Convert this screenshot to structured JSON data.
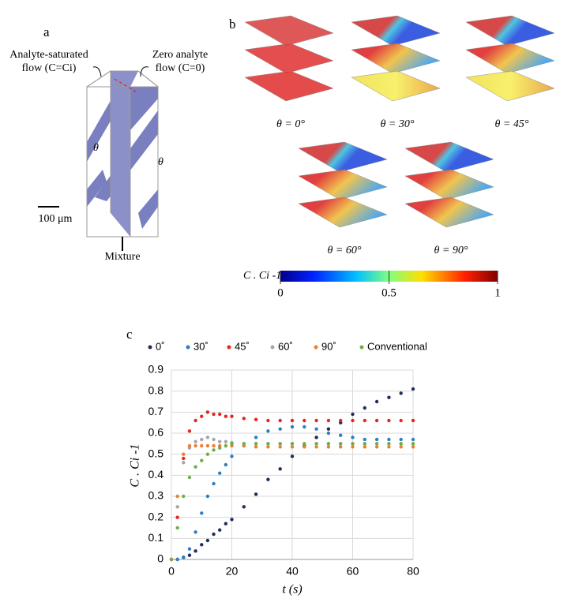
{
  "panel_a": {
    "label": "a",
    "left_label": [
      "Analyte-saturated",
      "flow (C=Ci)"
    ],
    "right_label": [
      "Zero analyte",
      "flow (C=0)"
    ],
    "angle_labels": [
      "θ",
      "θ"
    ],
    "scale_bar": "100 μm",
    "outlet": "Mixture"
  },
  "panel_b": {
    "label": "b",
    "cases": [
      "θ = 0°",
      "θ = 30°",
      "θ = 45°",
      "θ = 60°",
      "θ = 90°"
    ],
    "colorbar": {
      "label": "C . Ci -1",
      "lim": [
        0,
        1
      ],
      "ticks": [
        0,
        0.5,
        1
      ]
    }
  },
  "panel_c": {
    "label": "c"
  },
  "chart_data": {
    "type": "line",
    "xlabel": "t (s)",
    "ylabel": "C . Ci -1",
    "x": [
      0,
      2,
      4,
      6,
      8,
      10,
      12,
      14,
      16,
      18,
      20,
      24,
      28,
      32,
      36,
      40,
      44,
      48,
      52,
      56,
      60,
      64,
      68,
      72,
      76,
      80
    ],
    "xlim": [
      0,
      80
    ],
    "xticks": [
      0,
      20,
      40,
      60,
      80
    ],
    "ylim": [
      0,
      0.9
    ],
    "yticks": [
      0,
      0.1,
      0.2,
      0.3,
      0.4,
      0.5,
      0.6,
      0.7,
      0.8,
      0.9
    ],
    "grid": true,
    "legend": "top",
    "series": [
      {
        "name": "0˚",
        "color": "#1f2d5c",
        "values": [
          0,
          0,
          0.01,
          0.02,
          0.04,
          0.07,
          0.09,
          0.12,
          0.14,
          0.17,
          0.19,
          0.25,
          0.31,
          0.38,
          0.43,
          0.49,
          0.54,
          0.58,
          0.62,
          0.65,
          0.69,
          0.72,
          0.75,
          0.77,
          0.79,
          0.81
        ]
      },
      {
        "name": "30˚",
        "color": "#2e7fc1",
        "values": [
          0,
          0,
          0.01,
          0.05,
          0.13,
          0.22,
          0.3,
          0.36,
          0.41,
          0.45,
          0.49,
          0.54,
          0.58,
          0.61,
          0.62,
          0.63,
          0.63,
          0.62,
          0.6,
          0.59,
          0.58,
          0.57,
          0.57,
          0.57,
          0.57,
          0.57
        ]
      },
      {
        "name": "45˚",
        "color": "#e8241f",
        "values": [
          0,
          0.2,
          0.48,
          0.61,
          0.66,
          0.68,
          0.7,
          0.69,
          0.69,
          0.68,
          0.68,
          0.67,
          0.665,
          0.66,
          0.66,
          0.66,
          0.66,
          0.66,
          0.66,
          0.66,
          0.66,
          0.66,
          0.66,
          0.66,
          0.66,
          0.66
        ]
      },
      {
        "name": "60˚",
        "color": "#a6a6a6",
        "values": [
          0,
          0.25,
          0.46,
          0.53,
          0.56,
          0.57,
          0.58,
          0.57,
          0.56,
          0.56,
          0.555,
          0.55,
          0.55,
          0.55,
          0.55,
          0.55,
          0.55,
          0.55,
          0.55,
          0.55,
          0.55,
          0.55,
          0.55,
          0.55,
          0.55,
          0.55
        ]
      },
      {
        "name": "90˚",
        "color": "#ed7d31",
        "values": [
          0,
          0.3,
          0.5,
          0.54,
          0.54,
          0.54,
          0.54,
          0.54,
          0.54,
          0.54,
          0.54,
          0.54,
          0.535,
          0.535,
          0.535,
          0.535,
          0.535,
          0.535,
          0.535,
          0.535,
          0.535,
          0.535,
          0.535,
          0.535,
          0.535,
          0.535
        ]
      },
      {
        "name": "Conventional",
        "color": "#70ad47",
        "values": [
          0,
          0.15,
          0.3,
          0.39,
          0.44,
          0.47,
          0.5,
          0.52,
          0.53,
          0.54,
          0.55,
          0.55,
          0.55,
          0.55,
          0.55,
          0.55,
          0.55,
          0.55,
          0.55,
          0.55,
          0.55,
          0.55,
          0.55,
          0.55,
          0.55,
          0.55
        ]
      }
    ]
  }
}
